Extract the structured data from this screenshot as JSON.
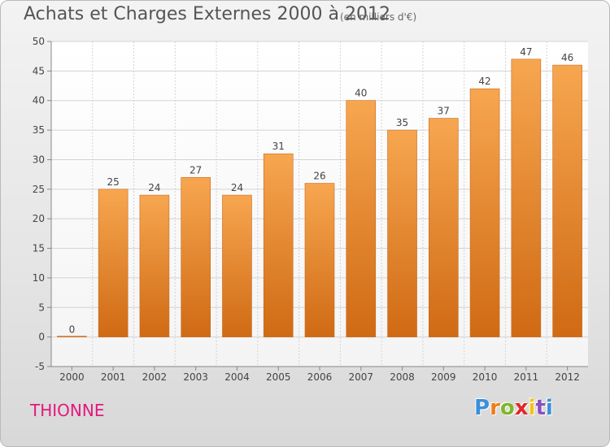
{
  "header": {
    "title": "Achats et Charges Externes 2000 à 2012",
    "subtitle": "(en milliers d'€)"
  },
  "footer": {
    "place": "THIONNE",
    "logo_text": "Proxiti",
    "logo_colors": [
      "#3a8fd9",
      "#f07d1a",
      "#7fb62b",
      "#e3262a",
      "#f4c21a",
      "#8a4fbf",
      "#3a8fd9"
    ]
  },
  "colors": {
    "bar_top": "#f7a650",
    "bar_bottom": "#d06a14",
    "grid": "#d3d3d3",
    "axis": "#888888",
    "label": "#444444"
  },
  "chart_data": {
    "type": "bar",
    "title": "Achats et Charges Externes 2000 à 2012",
    "subtitle": "(en milliers d'€)",
    "categories": [
      "2000",
      "2001",
      "2002",
      "2003",
      "2004",
      "2005",
      "2006",
      "2007",
      "2008",
      "2009",
      "2010",
      "2011",
      "2012"
    ],
    "values": [
      0,
      25,
      24,
      27,
      24,
      31,
      26,
      40,
      35,
      37,
      42,
      47,
      46
    ],
    "data_labels": [
      "0",
      "25",
      "24",
      "27",
      "24",
      "31",
      "26",
      "40",
      "35",
      "37",
      "42",
      "47",
      "46"
    ],
    "yticks": [
      "-5",
      "0",
      "5",
      "10",
      "15",
      "20",
      "25",
      "30",
      "35",
      "40",
      "45",
      "50"
    ],
    "ylim": [
      -5,
      50
    ],
    "grid": true,
    "xlabel": "",
    "ylabel": ""
  }
}
